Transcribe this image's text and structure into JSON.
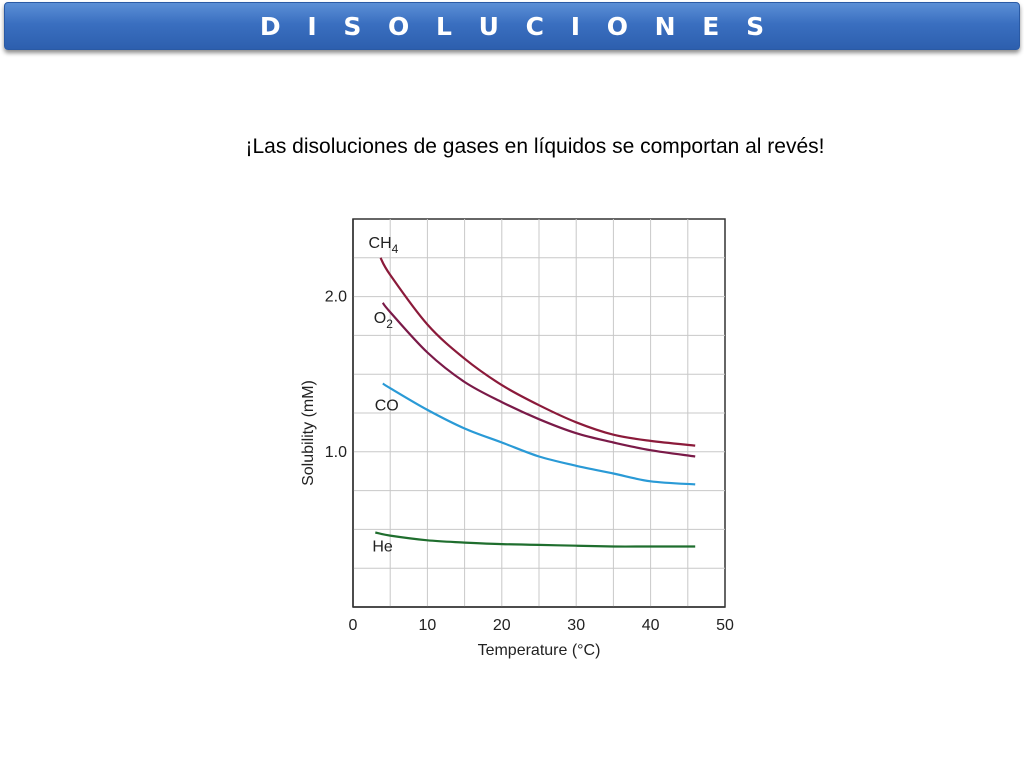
{
  "slide": {
    "title": "D I S O L U C I O N E S",
    "subtitle": "¡Las disoluciones de gases en líquidos se comportan al revés!"
  },
  "chart_data": {
    "type": "line",
    "xlabel": "Temperature (°C)",
    "ylabel": "Solubility (mM)",
    "xlim": [
      0,
      50
    ],
    "ylim": [
      0,
      2.5
    ],
    "xticks": [
      0,
      10,
      20,
      30,
      40,
      50
    ],
    "yticks": [
      1.0,
      2.0
    ],
    "grid": true,
    "series": [
      {
        "name": "CH4",
        "label_main": "CH",
        "label_sub": "4",
        "color": "#8b1a3a",
        "x": [
          3.7,
          5,
          10,
          15,
          20,
          25,
          30,
          35,
          40,
          46
        ],
        "y": [
          2.25,
          2.14,
          1.82,
          1.6,
          1.43,
          1.3,
          1.19,
          1.11,
          1.07,
          1.04
        ]
      },
      {
        "name": "O2",
        "label_main": "O",
        "label_sub": "2",
        "color": "#7a1a48",
        "x": [
          4,
          5,
          10,
          15,
          20,
          25,
          30,
          35,
          40,
          46
        ],
        "y": [
          1.96,
          1.9,
          1.64,
          1.45,
          1.32,
          1.21,
          1.12,
          1.06,
          1.01,
          0.97
        ]
      },
      {
        "name": "CO",
        "label_main": "CO",
        "label_sub": "",
        "color": "#2a9ad6",
        "x": [
          4,
          5,
          10,
          15,
          20,
          25,
          30,
          35,
          40,
          46
        ],
        "y": [
          1.44,
          1.41,
          1.27,
          1.15,
          1.06,
          0.97,
          0.91,
          0.86,
          0.81,
          0.79
        ]
      },
      {
        "name": "He",
        "label_main": "He",
        "label_sub": "",
        "color": "#1f6e2e",
        "x": [
          3,
          5,
          10,
          15,
          20,
          25,
          30,
          35,
          40,
          46
        ],
        "y": [
          0.48,
          0.46,
          0.43,
          0.415,
          0.405,
          0.4,
          0.395,
          0.39,
          0.39,
          0.39
        ]
      }
    ]
  }
}
